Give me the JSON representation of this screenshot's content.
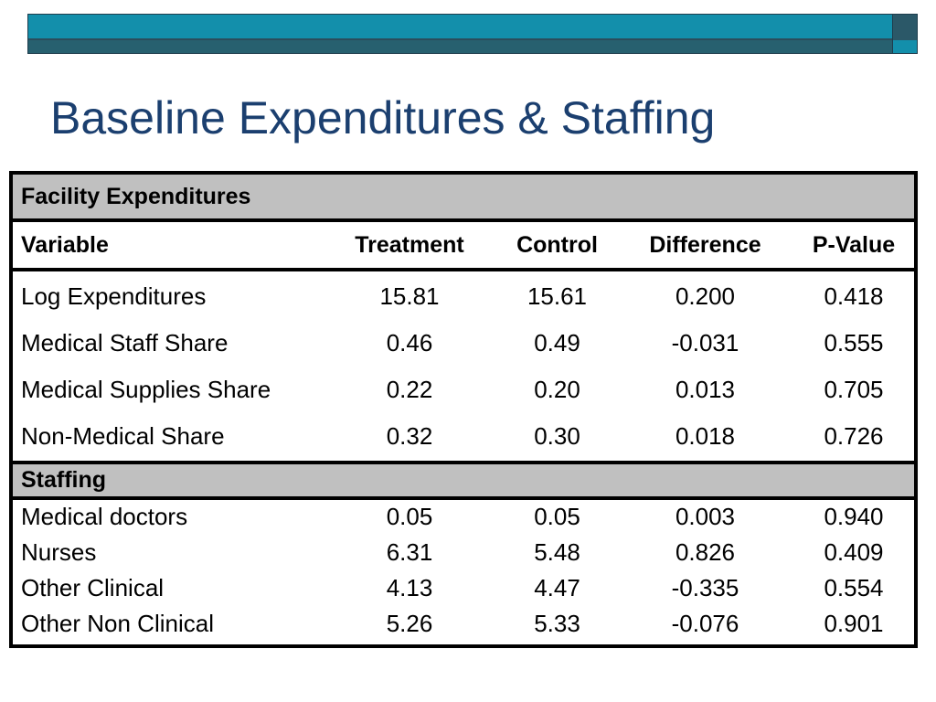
{
  "slide": {
    "title": "Baseline Expenditures & Staffing"
  },
  "table": {
    "section1_title": "Facility Expenditures",
    "headers": [
      "Variable",
      "Treatment",
      "Control",
      "Difference",
      "P-Value"
    ],
    "section1_rows": [
      [
        "Log Expenditures",
        "15.81",
        "15.61",
        "0.200",
        "0.418"
      ],
      [
        "Medical Staff Share",
        "0.46",
        "0.49",
        "-0.031",
        "0.555"
      ],
      [
        "Medical Supplies Share",
        "0.22",
        "0.20",
        "0.013",
        "0.705"
      ],
      [
        "Non-Medical Share",
        "0.32",
        "0.30",
        "0.018",
        "0.726"
      ]
    ],
    "section2_title": "Staffing",
    "section2_rows": [
      [
        "Medical doctors",
        "0.05",
        "0.05",
        "0.003",
        "0.940"
      ],
      [
        "Nurses",
        "6.31",
        "5.48",
        "0.826",
        "0.409"
      ],
      [
        "Other Clinical",
        "4.13",
        "4.47",
        "-0.335",
        "0.554"
      ],
      [
        "Other Non Clinical",
        "5.26",
        "5.33",
        "-0.076",
        "0.901"
      ]
    ]
  },
  "colors": {
    "title": "#1b3f6f",
    "bar_primary": "#138fab",
    "bar_dark": "#27606f",
    "section_header_bg": "#c0c0c0"
  }
}
